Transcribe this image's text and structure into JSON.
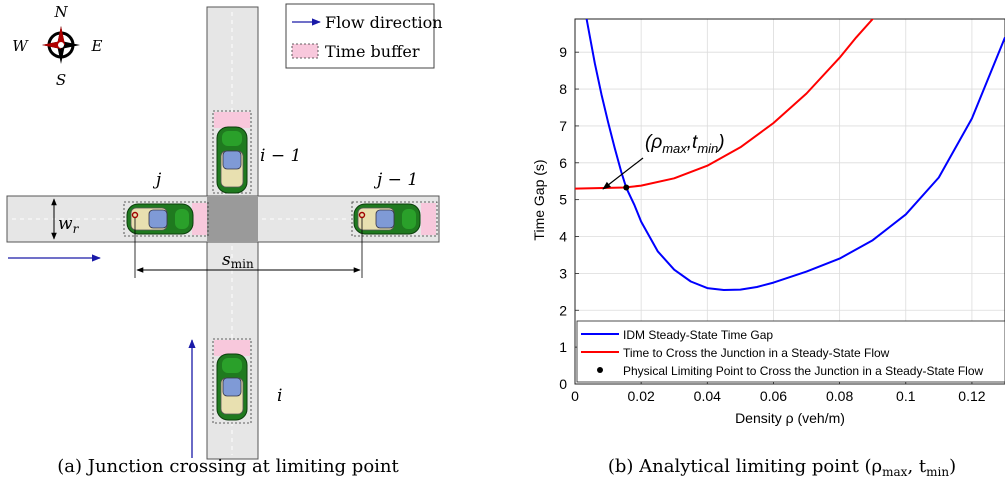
{
  "panel_a": {
    "caption": "(a) Junction crossing at limiting point",
    "compass": {
      "n": "N",
      "s": "S",
      "e": "E",
      "w": "W"
    },
    "legend": {
      "flow": "Flow direction",
      "buffer": "Time buffer"
    },
    "labels": {
      "j": "j",
      "j_minus_1": "j − 1",
      "i": "i",
      "i_minus_1": "i − 1",
      "w": "w",
      "w_sub": "r",
      "s": "s",
      "s_sub": "min"
    }
  },
  "panel_b": {
    "caption": "(b) Analytical limiting point (ρ",
    "caption_sub1": "max",
    "caption_mid": ", t",
    "caption_sub2": "min",
    "caption_end": ")",
    "annotation": {
      "open": "(ρ",
      "sub1": "max",
      "mid": ",t",
      "sub2": "min",
      "close": ")"
    },
    "chart_data": {
      "type": "line",
      "xlabel": "Density ρ (veh/m)",
      "ylabel": "Time Gap (s)",
      "xlim": [
        0,
        0.13
      ],
      "ylim": [
        0,
        9.9
      ],
      "xticks": [
        0,
        0.02,
        0.04,
        0.06,
        0.08,
        0.1,
        0.12
      ],
      "xtick_labels": [
        "0",
        "0.02",
        "0.04",
        "0.06",
        "0.08",
        "0.1",
        "0.12"
      ],
      "yticks": [
        0,
        1,
        2,
        3,
        4,
        5,
        6,
        7,
        8,
        9
      ],
      "ytick_labels": [
        "0",
        "1",
        "2",
        "3",
        "4",
        "5",
        "6",
        "7",
        "8",
        "9"
      ],
      "grid": true,
      "legend_position": "bottom",
      "series": [
        {
          "name": "IDM Steady-State Time Gap",
          "color": "#0000ff",
          "x": [
            0.0035,
            0.006,
            0.008,
            0.01,
            0.012,
            0.014,
            0.0155,
            0.018,
            0.02,
            0.025,
            0.03,
            0.035,
            0.04,
            0.045,
            0.05,
            0.055,
            0.06,
            0.07,
            0.08,
            0.09,
            0.1,
            0.11,
            0.12,
            0.13
          ],
          "y": [
            9.9,
            8.7,
            7.85,
            7.1,
            6.4,
            5.75,
            5.32,
            4.85,
            4.4,
            3.6,
            3.1,
            2.78,
            2.6,
            2.55,
            2.56,
            2.63,
            2.75,
            3.05,
            3.4,
            3.9,
            4.6,
            5.6,
            7.2,
            9.4
          ]
        },
        {
          "name": "Time to Cross the Junction in a Steady-State Flow",
          "color": "#ff0000",
          "x": [
            0,
            0.005,
            0.01,
            0.015,
            0.02,
            0.03,
            0.04,
            0.05,
            0.06,
            0.07,
            0.08,
            0.085,
            0.09,
            0.0925
          ],
          "y": [
            5.3,
            5.31,
            5.32,
            5.33,
            5.38,
            5.58,
            5.92,
            6.42,
            7.08,
            7.88,
            8.85,
            9.4,
            9.9,
            10.1
          ]
        },
        {
          "name": "Physical Limiting Point to Cross the Junction in a Steady-State Flow",
          "color": "#000000",
          "x": [
            0.0155
          ],
          "y": [
            5.33
          ],
          "marker": "dot"
        }
      ]
    }
  }
}
